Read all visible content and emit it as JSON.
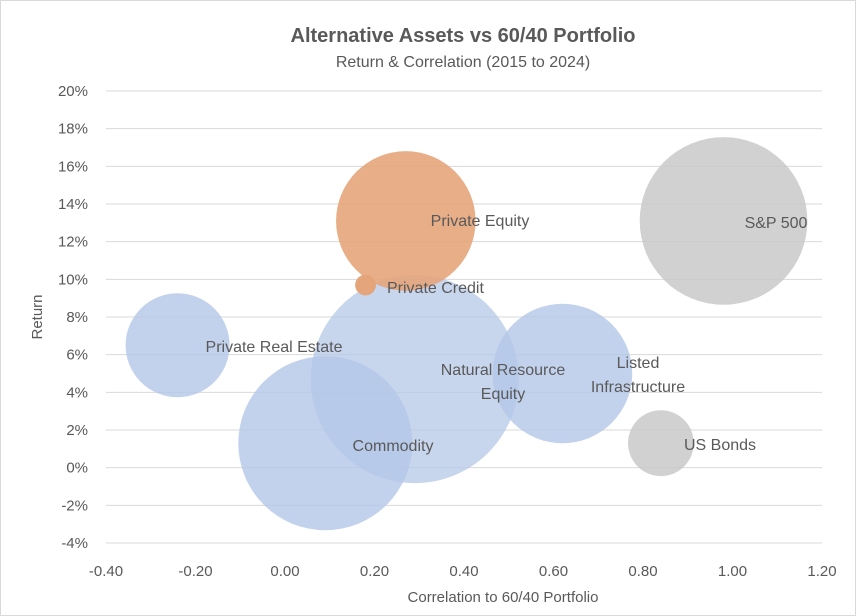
{
  "chart_data": {
    "type": "bubble",
    "title": "Alternative Assets vs 60/40 Portfolio",
    "subtitle": "Return & Correlation (2015 to 2024)",
    "xlabel": "Correlation to 60/40 Portfolio",
    "ylabel": "Return",
    "xlim": [
      -0.4,
      1.2
    ],
    "ylim": [
      -0.04,
      0.2
    ],
    "x_ticks": [
      "-0.40",
      "-0.20",
      "0.00",
      "0.20",
      "0.40",
      "0.60",
      "0.80",
      "1.00",
      "1.20"
    ],
    "y_ticks": [
      "-4%",
      "-2%",
      "0%",
      "2%",
      "4%",
      "6%",
      "8%",
      "10%",
      "12%",
      "14%",
      "16%",
      "18%",
      "20%"
    ],
    "grid": "horizontal",
    "points": [
      {
        "name": "Private Real Estate",
        "label": [
          "Private Real Estate"
        ],
        "x": -0.24,
        "y": 0.065,
        "size": 50,
        "color": "#b4c7e7",
        "opacity": 0.8
      },
      {
        "name": "Natural Resource Equity",
        "label": [
          "Natural Resource",
          "Equity"
        ],
        "x": 0.29,
        "y": 0.047,
        "size": 200,
        "color": "#b4c7e7",
        "opacity": 0.75
      },
      {
        "name": "Commodity",
        "label": [
          "Commodity"
        ],
        "x": 0.09,
        "y": 0.013,
        "size": 140,
        "color": "#b4c7e7",
        "opacity": 0.8
      },
      {
        "name": "Listed Infrastructure",
        "label": [
          "Listed",
          "Infrastructure"
        ],
        "x": 0.62,
        "y": 0.05,
        "size": 90,
        "color": "#b4c7e7",
        "opacity": 0.8
      },
      {
        "name": "Private Equity",
        "label": [
          "Private Equity"
        ],
        "x": 0.27,
        "y": 0.131,
        "size": 90,
        "color": "#e4a57a",
        "opacity": 0.9
      },
      {
        "name": "Private Credit",
        "label": [
          "Private Credit"
        ],
        "x": 0.18,
        "y": 0.097,
        "size": 2,
        "color": "#e4a57a",
        "opacity": 1.0
      },
      {
        "name": "S&P 500",
        "label": [
          "S&P 500"
        ],
        "x": 0.98,
        "y": 0.131,
        "size": 130,
        "color": "#c9c9c9",
        "opacity": 0.85
      },
      {
        "name": "US Bonds",
        "label": [
          "US Bonds"
        ],
        "x": 0.84,
        "y": 0.013,
        "size": 20,
        "color": "#c9c9c9",
        "opacity": 0.85
      }
    ]
  }
}
